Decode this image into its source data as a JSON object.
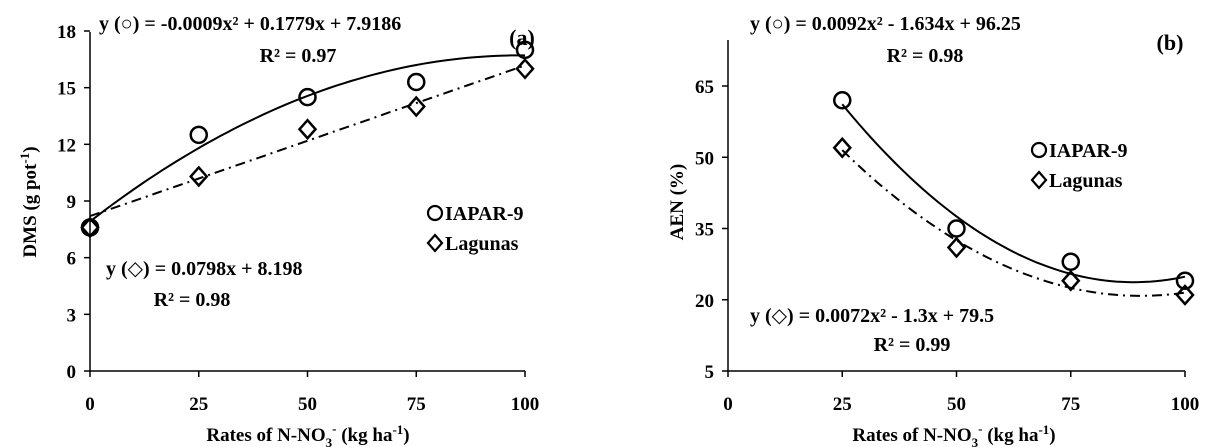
{
  "chart_data": [
    {
      "type": "scatter",
      "panel_label": "(a)",
      "xlabel_main": "Rates of N-NO",
      "xlabel_sub": "3",
      "xlabel_sup": "-",
      "xlabel_tail": " (kg ha",
      "xlabel_tail_sup": "-1",
      "xlabel_close": ")",
      "ylabel_main": "DMS (g pot",
      "ylabel_sup": "-1",
      "ylabel_close": ")",
      "xlim": [
        0,
        100
      ],
      "ylim": [
        0,
        18
      ],
      "xticks": [
        "0",
        "25",
        "50",
        "75",
        "100"
      ],
      "yticks": [
        "0",
        "3",
        "6",
        "9",
        "12",
        "15",
        "18"
      ],
      "xtick_values": [
        0,
        25,
        50,
        75,
        100
      ],
      "ytick_values": [
        0,
        3,
        6,
        9,
        12,
        15,
        18
      ],
      "series": [
        {
          "name": "IAPAR-9",
          "marker": "circle",
          "x": [
            0,
            25,
            50,
            75,
            100
          ],
          "y": [
            7.6,
            12.5,
            14.5,
            15.3,
            17.0
          ],
          "fit": {
            "kind": "poly",
            "coef": [
              -0.0009,
              0.1779,
              7.9186
            ],
            "style": "solid"
          },
          "equation": "y (○) = -0.0009x² + 0.1779x + 7.9186",
          "r2": "R² = 0.97"
        },
        {
          "name": "Lagunas",
          "marker": "diamond",
          "x": [
            0,
            25,
            50,
            75,
            100
          ],
          "y": [
            7.6,
            10.3,
            12.8,
            14.0,
            16.0
          ],
          "fit": {
            "kind": "poly",
            "coef": [
              0,
              0.0798,
              8.198
            ],
            "style": "dashdot"
          },
          "equation": "y (◇) = 0.0798x + 8.198",
          "r2": "R² = 0.98"
        }
      ],
      "legend": [
        "IAPAR-9",
        "Lagunas"
      ]
    },
    {
      "type": "scatter",
      "panel_label": "(b)",
      "xlabel_main": "Rates of N-NO",
      "xlabel_sub": "3",
      "xlabel_sup": "-",
      "xlabel_tail": " (kg ha",
      "xlabel_tail_sup": "-1",
      "xlabel_close": ")",
      "ylabel_main": "AEN (%)",
      "xlim": [
        0,
        100
      ],
      "ylim": [
        5,
        77
      ],
      "xticks": [
        "0",
        "25",
        "50",
        "75",
        "100"
      ],
      "yticks": [
        "5",
        "20",
        "35",
        "50",
        "65"
      ],
      "xtick_values": [
        0,
        25,
        50,
        75,
        100
      ],
      "ytick_values": [
        5,
        20,
        35,
        50,
        65
      ],
      "series": [
        {
          "name": "IAPAR-9",
          "marker": "circle",
          "x": [
            25,
            50,
            75,
            100
          ],
          "y": [
            62,
            35,
            28,
            24
          ],
          "fit": {
            "kind": "poly",
            "coef": [
              0.0092,
              -1.634,
              96.25
            ],
            "style": "solid"
          },
          "equation": "y (○) = 0.0092x² - 1.634x + 96.25",
          "r2": "R² = 0.98"
        },
        {
          "name": "Lagunas",
          "marker": "diamond",
          "x": [
            25,
            50,
            75,
            100
          ],
          "y": [
            52,
            31,
            24,
            21
          ],
          "fit": {
            "kind": "poly",
            "coef": [
              0.0072,
              -1.3,
              79.5
            ],
            "style": "dashdot"
          },
          "equation": "y (◇) = 0.0072x² - 1.3x + 79.5",
          "r2": "R² = 0.99"
        }
      ],
      "legend": [
        "IAPAR-9",
        "Lagunas"
      ]
    }
  ]
}
